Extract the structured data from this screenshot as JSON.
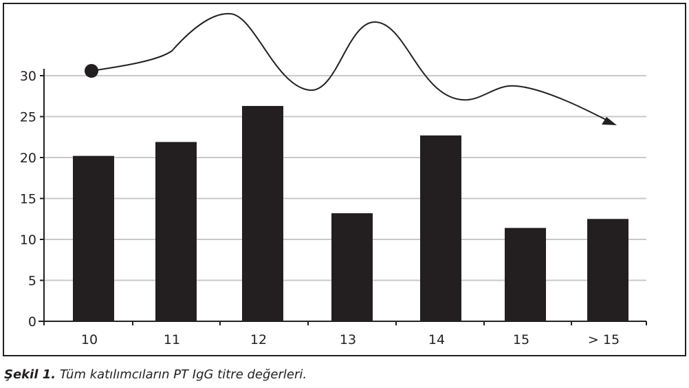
{
  "caption": {
    "label": "Şekil 1.",
    "text": " Tüm katılımcıların PT IgG titre değerleri."
  },
  "colors": {
    "bar": "#231f20",
    "grid": "#c8c8c8",
    "axis": "#231f20"
  },
  "chart_data": {
    "type": "bar",
    "categories": [
      "10",
      "11",
      "12",
      "13",
      "14",
      "15",
      "> 15"
    ],
    "values": [
      20.2,
      21.9,
      26.3,
      13.2,
      22.7,
      11.4,
      12.5
    ],
    "ylim": [
      0,
      30
    ],
    "yticks": [
      "0",
      "5",
      "10",
      "15",
      "20",
      "25",
      "30"
    ],
    "grid": true,
    "annotation": "decorative wavy arrow from start dot to arrowhead above bars"
  }
}
